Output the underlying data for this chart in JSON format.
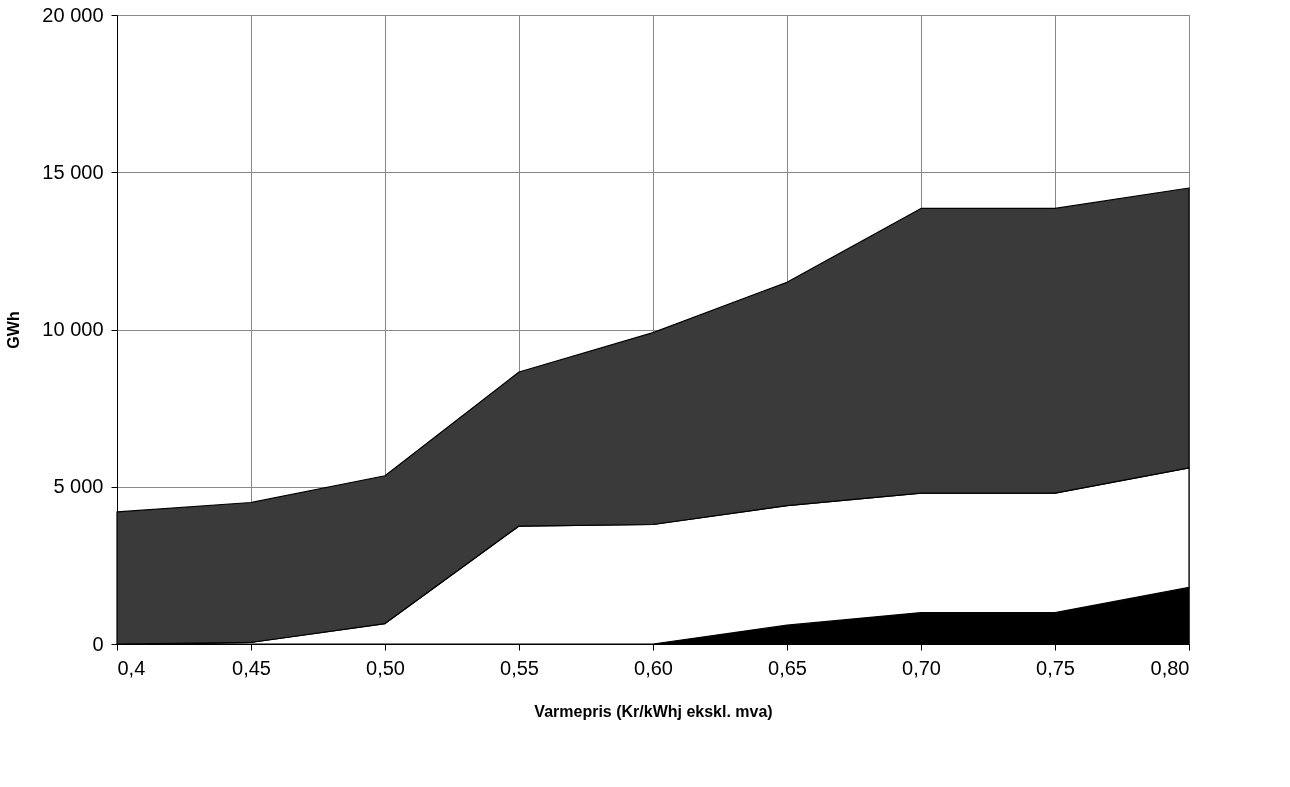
{
  "chart_data": {
    "type": "area",
    "stacked": true,
    "xlabel": "Varmepris (Kr/kWhj ekskl. mva)",
    "ylabel": "GWh",
    "x": [
      0.4,
      0.45,
      0.5,
      0.55,
      0.6,
      0.65,
      0.7,
      0.75,
      0.8
    ],
    "series": [
      {
        "color": "#000000",
        "values": [
          0,
          0,
          0,
          0,
          0,
          600,
          1000,
          1000,
          1800
        ]
      },
      {
        "color": "#ffffff",
        "values": [
          0,
          50,
          650,
          3750,
          3800,
          3800,
          3800,
          3800,
          3800
        ]
      },
      {
        "color": "#3a3a3a",
        "values": [
          4200,
          4450,
          4700,
          4900,
          6100,
          7100,
          9050,
          9050,
          8900
        ]
      }
    ],
    "xlim": [
      0.4,
      0.8
    ],
    "ylim": [
      0,
      20000
    ],
    "xticks": [
      {
        "value": 0.4,
        "label": "0,4"
      },
      {
        "value": 0.45,
        "label": "0,45"
      },
      {
        "value": 0.5,
        "label": "0,50"
      },
      {
        "value": 0.55,
        "label": "0,55"
      },
      {
        "value": 0.6,
        "label": "0,60"
      },
      {
        "value": 0.65,
        "label": "0,65"
      },
      {
        "value": 0.7,
        "label": "0,70"
      },
      {
        "value": 0.75,
        "label": "0,75"
      },
      {
        "value": 0.8,
        "label": "0,80"
      }
    ],
    "yticks": [
      {
        "value": 0,
        "label": "0"
      },
      {
        "value": 5000,
        "label": "5 000"
      },
      {
        "value": 10000,
        "label": "10 000"
      },
      {
        "value": 15000,
        "label": "15 000"
      },
      {
        "value": 20000,
        "label": "20 000"
      }
    ],
    "grid": true,
    "legend": false
  }
}
